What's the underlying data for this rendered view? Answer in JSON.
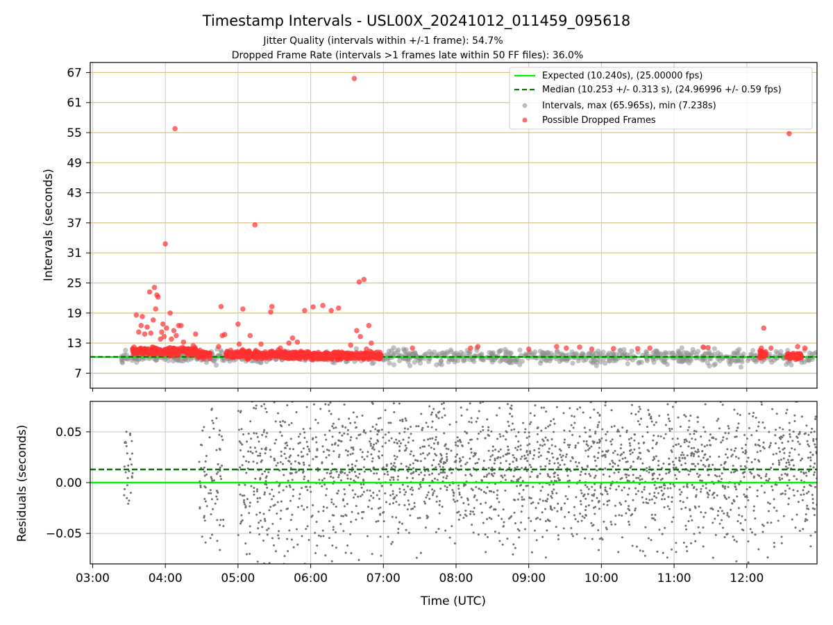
{
  "figure": {
    "title": "Timestamp Intervals - USL00X_20241012_011459_095618",
    "subtitle_1": "Jitter Quality (intervals within +/-1 frame): 54.7%",
    "subtitle_2": "Dropped Frame Rate (intervals >1 frames late within 50 FF files): 36.0%"
  },
  "chart_data": [
    {
      "type": "scatter",
      "panel": "intervals",
      "ylabel": "Intervals (seconds)",
      "xlabel": "",
      "ylim": [
        4,
        69
      ],
      "xlim": [
        "02:58",
        "12:58"
      ],
      "y_ticks": [
        7,
        13,
        19,
        25,
        31,
        37,
        43,
        49,
        55,
        61,
        67
      ],
      "grid": "horizontal gridlines at frame multiples, vertical gridlines at hours",
      "legend_position": "top-right",
      "legend": [
        {
          "label": "Expected (10.240s), (25.00000 fps)",
          "style": "solid-line",
          "color": "#00ee00"
        },
        {
          "label": "Median (10.253 +/- 0.313 s), (24.96996 +/- 0.59 fps)",
          "style": "dashed-line",
          "color": "#007700"
        },
        {
          "label": "Intervals, max (65.965s), min (7.238s)",
          "style": "dot",
          "color": "#909090"
        },
        {
          "label": "Possible Dropped Frames",
          "style": "dot",
          "color": "#ff3030"
        }
      ],
      "expected_interval": 10.24,
      "median_interval": 10.253,
      "intervals_span": [
        "03:24",
        "12:58"
      ],
      "intervals_typical_range": [
        7.5,
        12.5
      ],
      "dropped_frames": [
        {
          "x": "03:36",
          "y": 18.6
        },
        {
          "x": "03:38",
          "y": 15.2
        },
        {
          "x": "03:40",
          "y": 16.5
        },
        {
          "x": "03:41",
          "y": 18.3
        },
        {
          "x": "03:43",
          "y": 14.8
        },
        {
          "x": "03:45",
          "y": 16.2
        },
        {
          "x": "03:47",
          "y": 23.2
        },
        {
          "x": "03:48",
          "y": 15.0
        },
        {
          "x": "03:50",
          "y": 17.6
        },
        {
          "x": "03:51",
          "y": 24.1
        },
        {
          "x": "03:52",
          "y": 19.8
        },
        {
          "x": "03:53",
          "y": 22.6
        },
        {
          "x": "03:54",
          "y": 22.2
        },
        {
          "x": "03:56",
          "y": 13.8
        },
        {
          "x": "03:57",
          "y": 15.2
        },
        {
          "x": "03:58",
          "y": 16.8
        },
        {
          "x": "03:59",
          "y": 14.3
        },
        {
          "x": "04:00",
          "y": 32.8
        },
        {
          "x": "04:01",
          "y": 16.0
        },
        {
          "x": "04:04",
          "y": 19.0
        },
        {
          "x": "04:05",
          "y": 13.8
        },
        {
          "x": "04:07",
          "y": 15.5
        },
        {
          "x": "04:08",
          "y": 55.8
        },
        {
          "x": "04:09",
          "y": 14.5
        },
        {
          "x": "04:11",
          "y": 16.5
        },
        {
          "x": "04:13",
          "y": 16.5
        },
        {
          "x": "04:15",
          "y": 13.2
        },
        {
          "x": "04:23",
          "y": 12.5
        },
        {
          "x": "04:25",
          "y": 14.8
        },
        {
          "x": "04:44",
          "y": 12.3
        },
        {
          "x": "04:46",
          "y": 20.3
        },
        {
          "x": "04:47",
          "y": 14.5
        },
        {
          "x": "04:49",
          "y": 14.7
        },
        {
          "x": "05:00",
          "y": 16.8
        },
        {
          "x": "05:01",
          "y": 12.8
        },
        {
          "x": "05:04",
          "y": 19.8
        },
        {
          "x": "05:10",
          "y": 14.5
        },
        {
          "x": "05:14",
          "y": 36.6
        },
        {
          "x": "05:19",
          "y": 12.8
        },
        {
          "x": "05:27",
          "y": 19.2
        },
        {
          "x": "05:28",
          "y": 20.3
        },
        {
          "x": "05:35",
          "y": 12.0
        },
        {
          "x": "05:42",
          "y": 13.0
        },
        {
          "x": "05:45",
          "y": 14.0
        },
        {
          "x": "05:49",
          "y": 13.2
        },
        {
          "x": "05:55",
          "y": 19.5
        },
        {
          "x": "06:02",
          "y": 20.2
        },
        {
          "x": "06:10",
          "y": 20.5
        },
        {
          "x": "06:17",
          "y": 19.5
        },
        {
          "x": "06:23",
          "y": 20.0
        },
        {
          "x": "06:33",
          "y": 12.6
        },
        {
          "x": "06:36",
          "y": 65.8
        },
        {
          "x": "06:38",
          "y": 15.5
        },
        {
          "x": "06:40",
          "y": 25.2
        },
        {
          "x": "06:41",
          "y": 14.3
        },
        {
          "x": "06:44",
          "y": 25.7
        },
        {
          "x": "06:46",
          "y": 11.8
        },
        {
          "x": "06:48",
          "y": 16.5
        },
        {
          "x": "06:50",
          "y": 13.0
        },
        {
          "x": "07:24",
          "y": 12.0
        },
        {
          "x": "08:12",
          "y": 12.0
        },
        {
          "x": "08:18",
          "y": 12.3
        },
        {
          "x": "09:00",
          "y": 11.8
        },
        {
          "x": "09:23",
          "y": 12.3
        },
        {
          "x": "09:31",
          "y": 12.0
        },
        {
          "x": "09:42",
          "y": 12.2
        },
        {
          "x": "09:52",
          "y": 11.8
        },
        {
          "x": "10:10",
          "y": 11.9
        },
        {
          "x": "10:30",
          "y": 11.9
        },
        {
          "x": "10:40",
          "y": 12.0
        },
        {
          "x": "11:24",
          "y": 12.2
        },
        {
          "x": "11:28",
          "y": 12.1
        },
        {
          "x": "12:12",
          "y": 12.0
        },
        {
          "x": "12:14",
          "y": 16.0
        },
        {
          "x": "12:20",
          "y": 12.0
        },
        {
          "x": "12:35",
          "y": 54.8
        },
        {
          "x": "12:42",
          "y": 12.3
        },
        {
          "x": "12:48",
          "y": 12.0
        }
      ],
      "dropped_frame_bands": [
        {
          "from": "03:33",
          "to": "04:25",
          "y_center": 11.4
        },
        {
          "from": "04:25",
          "to": "04:37",
          "y_center": 10.8
        },
        {
          "from": "04:50",
          "to": "06:00",
          "y_center": 10.7
        },
        {
          "from": "06:00",
          "to": "06:58",
          "y_center": 10.5
        },
        {
          "from": "12:10",
          "to": "12:16",
          "y_center": 10.6
        },
        {
          "from": "12:33",
          "to": "12:45",
          "y_center": 10.4
        }
      ]
    },
    {
      "type": "scatter",
      "panel": "residuals",
      "ylabel": "Residuals (seconds)",
      "xlabel": "Time (UTC)",
      "ylim": [
        -0.08,
        0.08
      ],
      "y_ticks": [
        -0.05,
        0.0,
        0.05
      ],
      "y_tick_labels": [
        "−0.05",
        "0.00",
        "0.05"
      ],
      "x_tick_labels": [
        "03:00",
        "04:00",
        "05:00",
        "06:00",
        "07:00",
        "08:00",
        "09:00",
        "10:00",
        "11:00",
        "12:00"
      ],
      "expected_residual": 0.0,
      "median_residual": 0.013,
      "residual_clusters": [
        {
          "from": "03:26",
          "to": "03:33",
          "spread": 0.045
        },
        {
          "from": "04:28",
          "to": "04:48",
          "spread": 0.075
        },
        {
          "from": "05:00",
          "to": "06:00",
          "spread": 0.08
        },
        {
          "from": "06:00",
          "to": "07:00",
          "spread": 0.08
        },
        {
          "from": "07:00",
          "to": "12:58",
          "spread": 0.065
        }
      ],
      "colors": {
        "point": "#6e6e6e",
        "expected": "#00ee00",
        "median": "#007700"
      }
    }
  ]
}
